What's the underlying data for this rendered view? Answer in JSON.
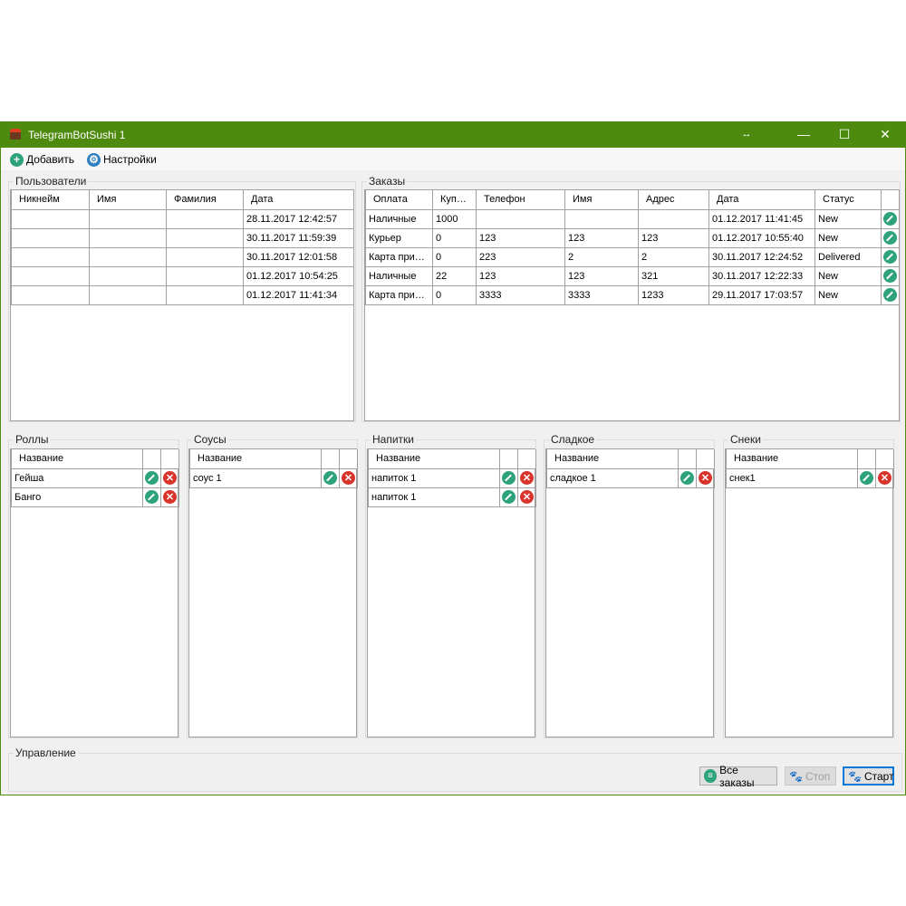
{
  "window": {
    "title": "TelegramBotSushi 1",
    "minimize": "—",
    "maximize": "☐",
    "close": "✕",
    "resize": "↔"
  },
  "toolbar": {
    "add": "Добавить",
    "settings": "Настройки"
  },
  "users": {
    "title": "Пользователи",
    "columns": [
      "Никнейм",
      "Имя",
      "Фамилия",
      "Дата"
    ],
    "rows": [
      [
        "",
        "",
        "",
        "28.11.2017 12:42:57"
      ],
      [
        "",
        "",
        "",
        "30.11.2017 11:59:39"
      ],
      [
        "",
        "",
        "",
        "30.11.2017 12:01:58"
      ],
      [
        "",
        "",
        "",
        "01.12.2017 10:54:25"
      ],
      [
        "",
        "",
        "",
        "01.12.2017 11:41:34"
      ]
    ]
  },
  "orders": {
    "title": "Заказы",
    "columns": [
      "Оплата",
      "Купюра",
      "Телефон",
      "Имя",
      "Адрес",
      "Дата",
      "Статус",
      ""
    ],
    "rows": [
      [
        "Наличные",
        "1000",
        "",
        "",
        "",
        "01.12.2017 11:41:45",
        "New"
      ],
      [
        "Курьер",
        "0",
        "123",
        "123",
        "123",
        "01.12.2017 10:55:40",
        "New"
      ],
      [
        "Карта привязанная",
        "0",
        "223",
        "2",
        "2",
        "30.11.2017 12:24:52",
        "Delivered"
      ],
      [
        "Наличные",
        "22",
        "123",
        "123",
        "321",
        "30.11.2017 12:22:33",
        "New"
      ],
      [
        "Карта привязанная",
        "0",
        "3333",
        "3333",
        "1233",
        "29.11.2017 17:03:57",
        "New"
      ]
    ]
  },
  "categories": [
    {
      "title": "Роллы",
      "column": "Название",
      "items": [
        "Гейша",
        "Банго"
      ]
    },
    {
      "title": "Соусы",
      "column": "Название",
      "items": [
        "соус 1"
      ]
    },
    {
      "title": "Напитки",
      "column": "Название",
      "items": [
        "напиток 1",
        "напиток 1"
      ]
    },
    {
      "title": "Сладкое",
      "column": "Название",
      "items": [
        "сладкое 1"
      ]
    },
    {
      "title": "Снеки",
      "column": "Название",
      "items": [
        "снек1"
      ]
    }
  ],
  "control": {
    "title": "Управление",
    "all_orders": "Все заказы",
    "stop": "Стоп",
    "start": "Старт"
  },
  "colors": {
    "titlebar": "#4e8a0e",
    "edit": "#2ea37a",
    "delete": "#d9342b"
  }
}
